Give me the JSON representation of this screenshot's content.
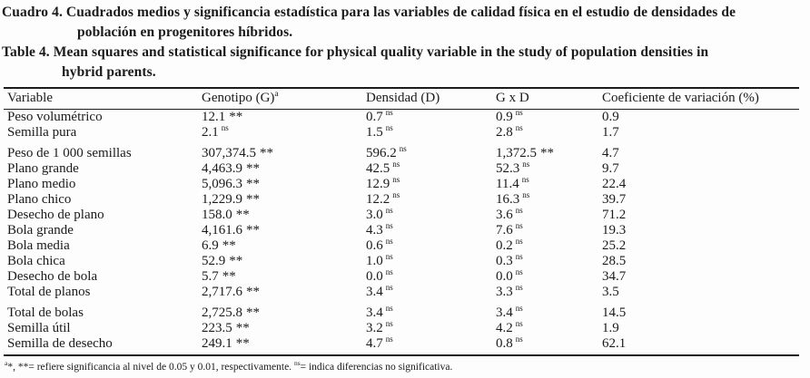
{
  "heading": {
    "lines": [
      "Cuadro 4. Cuadrados medios y significancia estadística para las variables de calidad física en el estudio de densidades de",
      "población en progenitores híbridos.",
      "Table 4. Mean squares and statistical significance for physical quality variable in the study of population densities in",
      "hybrid parents."
    ]
  },
  "table": {
    "headers": [
      "Variable",
      "Genotipo (G)",
      "Densidad (D)",
      "G x D",
      "Coeficiente de variación (%)"
    ],
    "genotipo_sup": "a",
    "rows": [
      {
        "variable": "Peso volumétrico",
        "genotipo": "12.1",
        "genotipo_sig": "**",
        "densidad": "0.7",
        "densidad_sig": "ns",
        "gxd": "0.9",
        "gxd_sig": "ns",
        "cv": "0.9"
      },
      {
        "variable": "Semilla pura",
        "genotipo": "2.1",
        "genotipo_sig": "ns",
        "densidad": "1.5",
        "densidad_sig": "ns",
        "gxd": "2.8",
        "gxd_sig": "ns",
        "cv": "1.7"
      },
      {
        "variable": "Peso de 1 000 semillas",
        "genotipo": "307,374.5",
        "genotipo_sig": "**",
        "densidad": "596.2",
        "densidad_sig": "ns",
        "gxd": "1,372.5",
        "gxd_sig": "**",
        "cv": "4.7"
      },
      {
        "variable": "Plano grande",
        "genotipo": "4,463.9",
        "genotipo_sig": "**",
        "densidad": "42.5",
        "densidad_sig": "ns",
        "gxd": "52.3",
        "gxd_sig": "ns",
        "cv": "9.7"
      },
      {
        "variable": "Plano medio",
        "genotipo": "5,096.3",
        "genotipo_sig": "**",
        "densidad": "12.9",
        "densidad_sig": "ns",
        "gxd": "11.4",
        "gxd_sig": "ns",
        "cv": "22.4"
      },
      {
        "variable": "Plano chico",
        "genotipo": "1,229.9",
        "genotipo_sig": "**",
        "densidad": "12.2",
        "densidad_sig": "ns",
        "gxd": "16.3",
        "gxd_sig": "ns",
        "cv": "39.7"
      },
      {
        "variable": "Desecho de plano",
        "genotipo": "158.0",
        "genotipo_sig": "**",
        "densidad": "3.0",
        "densidad_sig": "ns",
        "gxd": "3.6",
        "gxd_sig": "ns",
        "cv": "71.2"
      },
      {
        "variable": "Bola grande",
        "genotipo": "4,161.6",
        "genotipo_sig": "**",
        "densidad": "4.3",
        "densidad_sig": "ns",
        "gxd": "7.6",
        "gxd_sig": "ns",
        "cv": "19.3"
      },
      {
        "variable": "Bola media",
        "genotipo": "6.9",
        "genotipo_sig": "**",
        "densidad": "0.6",
        "densidad_sig": "ns",
        "gxd": "0.2",
        "gxd_sig": "ns",
        "cv": "25.2"
      },
      {
        "variable": "Bola chica",
        "genotipo": "52.9",
        "genotipo_sig": "**",
        "densidad": "1.0",
        "densidad_sig": "ns",
        "gxd": "0.3",
        "gxd_sig": "ns",
        "cv": "28.5"
      },
      {
        "variable": "Desecho de bola",
        "genotipo": "5.7",
        "genotipo_sig": "**",
        "densidad": "0.0",
        "densidad_sig": "ns",
        "gxd": "0.0",
        "gxd_sig": "ns",
        "cv": "34.7"
      },
      {
        "variable": "Total de planos",
        "genotipo": "2,717.6",
        "genotipo_sig": "**",
        "densidad": "3.4",
        "densidad_sig": "ns",
        "gxd": "3.3",
        "gxd_sig": "ns",
        "cv": "3.5"
      },
      {
        "variable": "Total de bolas",
        "genotipo": "2,725.8",
        "genotipo_sig": "**",
        "densidad": "3.4",
        "densidad_sig": "ns",
        "gxd": "3.4",
        "gxd_sig": "ns",
        "cv": "14.5"
      },
      {
        "variable": "Semilla útil",
        "genotipo": "223.5",
        "genotipo_sig": "**",
        "densidad": "3.2",
        "densidad_sig": "ns",
        "gxd": "4.2",
        "gxd_sig": "ns",
        "cv": "1.9"
      },
      {
        "variable": "Semilla de desecho",
        "genotipo": "249.1",
        "genotipo_sig": "**",
        "densidad": "4.7",
        "densidad_sig": "ns",
        "gxd": "0.8",
        "gxd_sig": "ns",
        "cv": "62.1"
      }
    ]
  },
  "footnote": {
    "sup_a": "a",
    "part1": "*, **= refiere significancia al nivel de 0.05 y 0.01, respectivamente. ",
    "sup_ns": "ns",
    "part2": "= indica diferencias no significativa."
  }
}
